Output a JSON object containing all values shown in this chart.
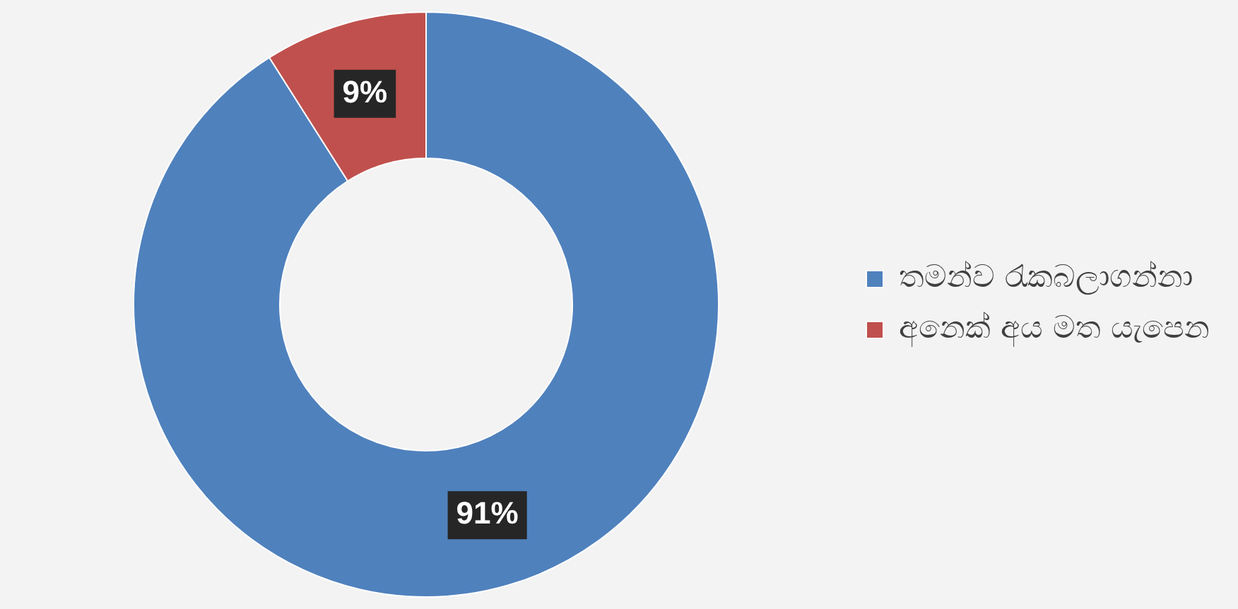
{
  "chart_data": {
    "type": "donut",
    "categories": [
      "තමන්ව රැකබලාගන්නා",
      "අනෙක් අය මත යැපෙන"
    ],
    "values": [
      91,
      9
    ],
    "colors": [
      "#4f81bd",
      "#c0504d"
    ],
    "value_labels": [
      "91%",
      "9%"
    ],
    "legend": "right"
  }
}
